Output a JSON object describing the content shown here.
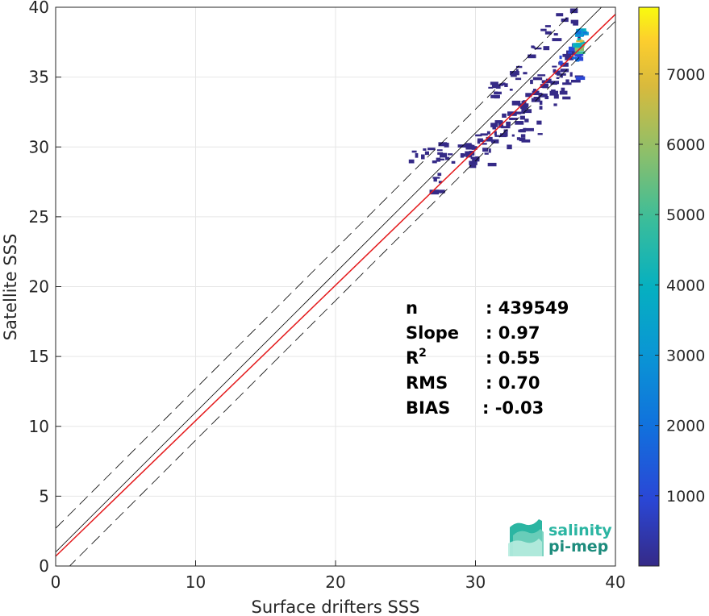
{
  "chart_data": {
    "type": "heatmap",
    "title": "",
    "xlabel": "Surface drifters SSS",
    "ylabel": "Satellite SSS",
    "xlim": [
      0,
      40
    ],
    "ylim": [
      0,
      40
    ],
    "xticks": [
      0,
      10,
      20,
      30,
      40
    ],
    "yticks": [
      0,
      5,
      10,
      15,
      20,
      25,
      30,
      35,
      40
    ],
    "grid": true,
    "reference_lines": [
      {
        "kind": "one-to-one",
        "color": "#000000",
        "style": "solid",
        "slope": 1,
        "intercept": 1
      },
      {
        "kind": "plus-band",
        "color": "#000000",
        "style": "dashed",
        "slope": 1,
        "intercept": 2.7
      },
      {
        "kind": "minus-band",
        "color": "#000000",
        "style": "dashed",
        "slope": 1,
        "intercept": -1
      },
      {
        "kind": "regression",
        "color": "#e41a1c",
        "style": "solid",
        "slope": 0.97,
        "intercept": 0.7
      }
    ],
    "stats": [
      {
        "label": "n",
        "value": ": 439549"
      },
      {
        "label": "Slope",
        "value": ": 0.97"
      },
      {
        "label": "R",
        "sup": "2",
        "value": ": 0.55"
      },
      {
        "label": "RMS",
        "value": ": 0.70"
      },
      {
        "label": "BIAS",
        "value": ": -0.03"
      }
    ],
    "colorbar": {
      "colormap": "parula",
      "range": [
        0,
        7950
      ],
      "ticks": [
        1000,
        2000,
        3000,
        4000,
        5000,
        6000,
        7000
      ]
    },
    "density": [
      {
        "x": 37.5,
        "y": 37.5,
        "count": 7500
      },
      {
        "x": 37.4,
        "y": 37.0,
        "count": 5200
      },
      {
        "x": 37.6,
        "y": 38.2,
        "count": 3800
      },
      {
        "x": 37.3,
        "y": 36.5,
        "count": 2400
      },
      {
        "x": 37.0,
        "y": 37.5,
        "count": 1600
      },
      {
        "x": 36.5,
        "y": 36.5,
        "count": 1100
      },
      {
        "x": 36.0,
        "y": 35.5,
        "count": 800
      },
      {
        "x": 35.5,
        "y": 35.0,
        "count": 600
      },
      {
        "x": 35.0,
        "y": 34.5,
        "count": 450
      },
      {
        "x": 34.5,
        "y": 34.0,
        "count": 350
      },
      {
        "x": 34.0,
        "y": 33.5,
        "count": 300
      },
      {
        "x": 33.5,
        "y": 33.0,
        "count": 250
      },
      {
        "x": 33.0,
        "y": 32.5,
        "count": 220
      },
      {
        "x": 32.5,
        "y": 32.0,
        "count": 200
      },
      {
        "x": 32.0,
        "y": 31.5,
        "count": 180
      },
      {
        "x": 31.5,
        "y": 31.0,
        "count": 160
      },
      {
        "x": 31.0,
        "y": 30.5,
        "count": 150
      },
      {
        "x": 30.5,
        "y": 30.2,
        "count": 130
      },
      {
        "x": 30.0,
        "y": 29.8,
        "count": 110
      },
      {
        "x": 29.0,
        "y": 29.5,
        "count": 90
      },
      {
        "x": 28.0,
        "y": 29.8,
        "count": 70
      },
      {
        "x": 27.0,
        "y": 29.6,
        "count": 60
      },
      {
        "x": 26.0,
        "y": 29.6,
        "count": 50
      },
      {
        "x": 30.5,
        "y": 28.8,
        "count": 60
      },
      {
        "x": 27.5,
        "y": 27.4,
        "count": 40
      },
      {
        "x": 36.5,
        "y": 39.5,
        "count": 500
      },
      {
        "x": 35.5,
        "y": 38.0,
        "count": 450
      },
      {
        "x": 34.5,
        "y": 37.0,
        "count": 300
      },
      {
        "x": 36.0,
        "y": 33.5,
        "count": 350
      },
      {
        "x": 37.0,
        "y": 35.0,
        "count": 900
      },
      {
        "x": 33.0,
        "y": 35.5,
        "count": 120
      },
      {
        "x": 32.0,
        "y": 34.0,
        "count": 100
      },
      {
        "x": 31.5,
        "y": 34.2,
        "count": 90
      },
      {
        "x": 34.0,
        "y": 31.5,
        "count": 140
      },
      {
        "x": 33.0,
        "y": 30.5,
        "count": 110
      }
    ]
  },
  "logo": {
    "line1": "salinity",
    "line2": "pi-mep",
    "color": "#2bb5a2"
  }
}
